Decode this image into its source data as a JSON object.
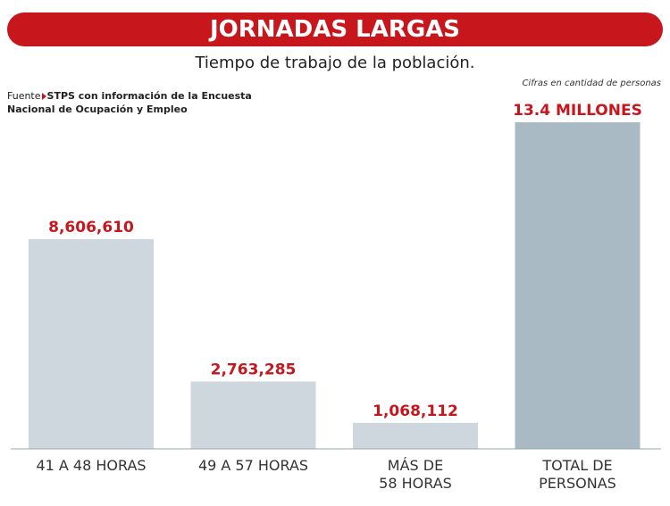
{
  "chart_data": {
    "type": "bar",
    "title": "JORNADAS LARGAS",
    "subtitle": "Tiempo de trabajo de la población.",
    "note": "Cifras en cantidad de personas",
    "source_label": "Fuente",
    "source": "STPS con información de la Encuesta\nNacional de Ocupación y Empleo",
    "categories": [
      "41 A 48 HORAS",
      "49 A 57 HORAS",
      "MÁS DE\n58 HORAS",
      "TOTAL DE\nPERSONAS"
    ],
    "values": [
      8606610,
      2763285,
      1068112,
      13400000
    ],
    "value_labels": [
      "8,606,610",
      "2,763,285",
      "1,068,112",
      "13.4 MILLONES"
    ],
    "colors": [
      "#cfd7de",
      "#cfd7de",
      "#cfd7de",
      "#a9bac4"
    ],
    "title_color": "#c8161d",
    "label_color": "#c8161d"
  }
}
